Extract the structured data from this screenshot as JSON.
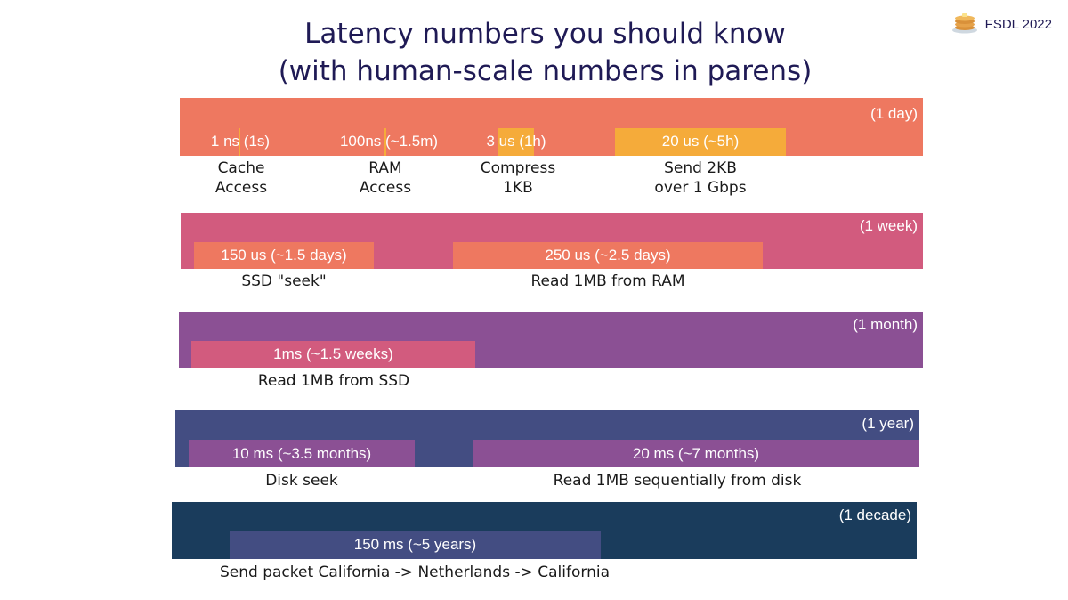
{
  "title": {
    "line1": "Latency numbers you should know",
    "line2": "(with human-scale numbers in parens)"
  },
  "brand": {
    "icon": "pancake-stack-icon",
    "label": "FSDL 2022"
  },
  "colors": {
    "band_day": "#ee7860",
    "band_week": "#d25b7e",
    "band_month": "#8b5094",
    "band_year": "#434d82",
    "band_decade": "#1a3c5c",
    "bar_highlight": "#f5ab3a"
  },
  "rows": [
    {
      "scale": "(1 day)",
      "items": [
        {
          "value": "1 ns (1s)",
          "caption1": "Cache",
          "caption2": "Access"
        },
        {
          "value": "100ns (~1.5m)",
          "caption1": "RAM",
          "caption2": "Access"
        },
        {
          "value": "3 us (1h)",
          "caption1": "Compress",
          "caption2": "1KB"
        },
        {
          "value": "20 us (~5h)",
          "caption1": "Send 2KB",
          "caption2": "over 1 Gbps"
        }
      ]
    },
    {
      "scale": "(1 week)",
      "items": [
        {
          "value": "150 us (~1.5 days)",
          "caption1": "SSD \"seek\""
        },
        {
          "value": "250 us (~2.5 days)",
          "caption1": "Read 1MB from RAM"
        }
      ]
    },
    {
      "scale": "(1 month)",
      "items": [
        {
          "value": "1ms (~1.5 weeks)",
          "caption1": "Read 1MB from SSD"
        }
      ]
    },
    {
      "scale": "(1 year)",
      "items": [
        {
          "value": "10 ms (~3.5 months)",
          "caption1": "Disk seek"
        },
        {
          "value": "20 ms (~7 months)",
          "caption1": "Read 1MB sequentially from disk"
        }
      ]
    },
    {
      "scale": "(1 decade)",
      "items": [
        {
          "value": "150 ms (~5 years)",
          "caption1": "Send packet California -> Netherlands -> California"
        }
      ]
    }
  ]
}
